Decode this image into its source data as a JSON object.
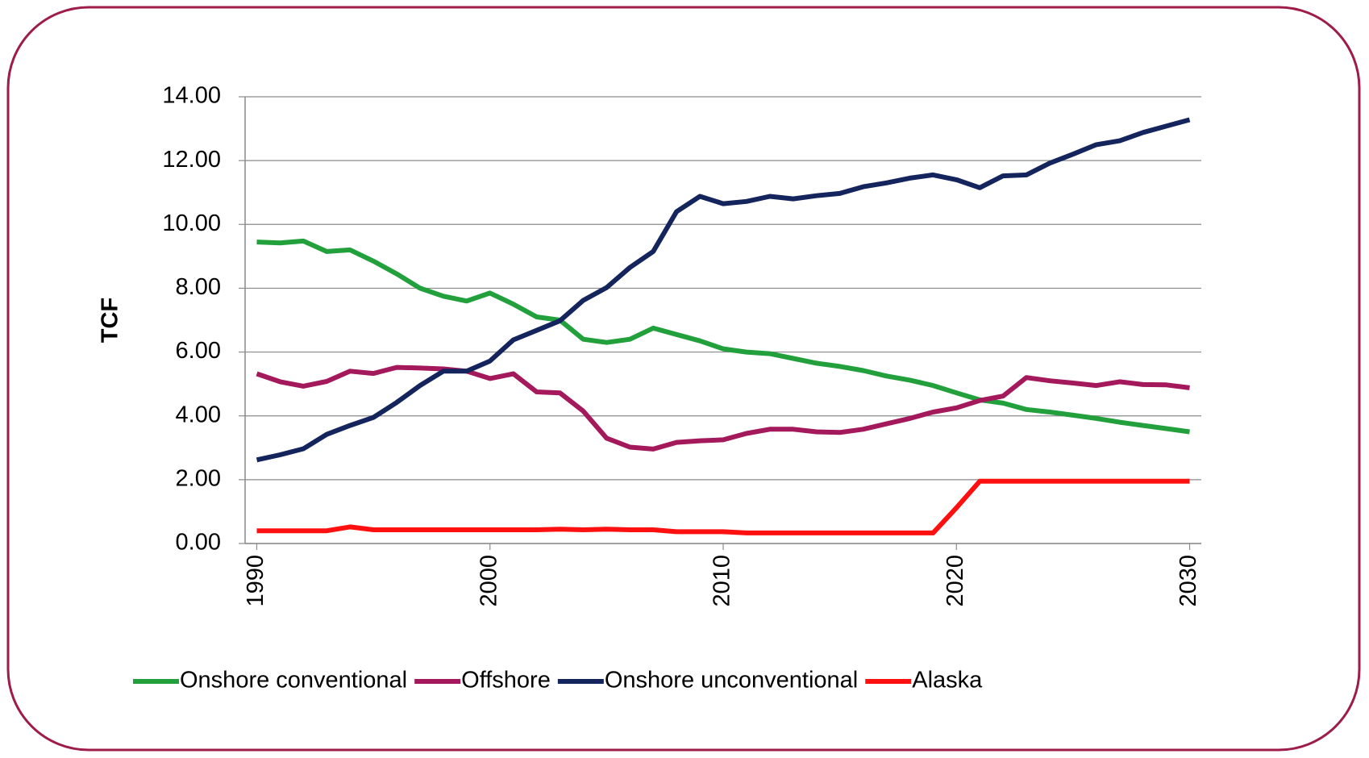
{
  "chart_data": {
    "type": "line",
    "ylabel": "TCF",
    "x": [
      1990,
      1991,
      1992,
      1993,
      1994,
      1995,
      1996,
      1997,
      1998,
      1999,
      2000,
      2001,
      2002,
      2003,
      2004,
      2005,
      2006,
      2007,
      2008,
      2009,
      2010,
      2011,
      2012,
      2013,
      2014,
      2015,
      2016,
      2017,
      2018,
      2019,
      2020,
      2021,
      2022,
      2023,
      2024,
      2025,
      2026,
      2027,
      2028,
      2029,
      2030
    ],
    "xlim": [
      1989.5,
      2030.5
    ],
    "xticks": [
      1990,
      2000,
      2010,
      2020,
      2030
    ],
    "ylim": [
      0,
      14
    ],
    "yticks": [
      {
        "value": 0,
        "label": "0.00"
      },
      {
        "value": 2,
        "label": "2.00"
      },
      {
        "value": 4,
        "label": "4.00"
      },
      {
        "value": 6,
        "label": "6.00"
      },
      {
        "value": 8,
        "label": "8.00"
      },
      {
        "value": 10,
        "label": "10.00"
      },
      {
        "value": 12,
        "label": "12.00"
      },
      {
        "value": 14,
        "label": "14.00"
      }
    ],
    "grid": true,
    "legend": "bottom",
    "series": [
      {
        "name": "Onshore conventional",
        "color": "#22a03c",
        "values": [
          9.45,
          9.42,
          9.48,
          9.15,
          9.2,
          8.85,
          8.45,
          8.0,
          7.75,
          7.6,
          7.85,
          7.5,
          7.1,
          7.0,
          6.4,
          6.3,
          6.4,
          6.75,
          6.55,
          6.35,
          6.1,
          6.0,
          5.95,
          5.8,
          5.65,
          5.55,
          5.42,
          5.25,
          5.12,
          4.95,
          4.72,
          4.5,
          4.4,
          4.2,
          4.12,
          4.02,
          3.92,
          3.8,
          3.7,
          3.6,
          3.5
        ]
      },
      {
        "name": "Offshore",
        "color": "#a3195b",
        "values": [
          5.32,
          5.07,
          4.93,
          5.08,
          5.4,
          5.33,
          5.52,
          5.5,
          5.47,
          5.4,
          5.17,
          5.32,
          4.75,
          4.72,
          4.15,
          3.3,
          3.02,
          2.96,
          3.17,
          3.22,
          3.25,
          3.45,
          3.58,
          3.58,
          3.5,
          3.48,
          3.58,
          3.75,
          3.92,
          4.12,
          4.25,
          4.48,
          4.62,
          5.2,
          5.1,
          5.03,
          4.95,
          5.07,
          4.98,
          4.97,
          4.88
        ]
      },
      {
        "name": "Onshore unconventional",
        "color": "#14245c",
        "values": [
          2.62,
          2.78,
          2.97,
          3.42,
          3.7,
          3.95,
          4.42,
          4.95,
          5.4,
          5.4,
          5.72,
          6.38,
          6.68,
          6.98,
          7.62,
          8.02,
          8.65,
          9.15,
          10.4,
          10.88,
          10.65,
          10.72,
          10.88,
          10.8,
          10.9,
          10.97,
          11.18,
          11.3,
          11.45,
          11.55,
          11.4,
          11.15,
          11.52,
          11.55,
          11.92,
          12.2,
          12.5,
          12.62,
          12.88,
          13.08,
          13.28
        ]
      },
      {
        "name": "Alaska",
        "color": "#ff1010",
        "values": [
          0.4,
          0.4,
          0.4,
          0.4,
          0.52,
          0.43,
          0.43,
          0.43,
          0.43,
          0.43,
          0.43,
          0.43,
          0.43,
          0.45,
          0.43,
          0.45,
          0.43,
          0.43,
          0.37,
          0.37,
          0.37,
          0.33,
          0.33,
          0.33,
          0.33,
          0.33,
          0.33,
          0.33,
          0.33,
          0.33,
          1.12,
          1.95,
          1.95,
          1.95,
          1.95,
          1.95,
          1.95,
          1.95,
          1.95,
          1.95,
          1.95
        ]
      }
    ]
  }
}
